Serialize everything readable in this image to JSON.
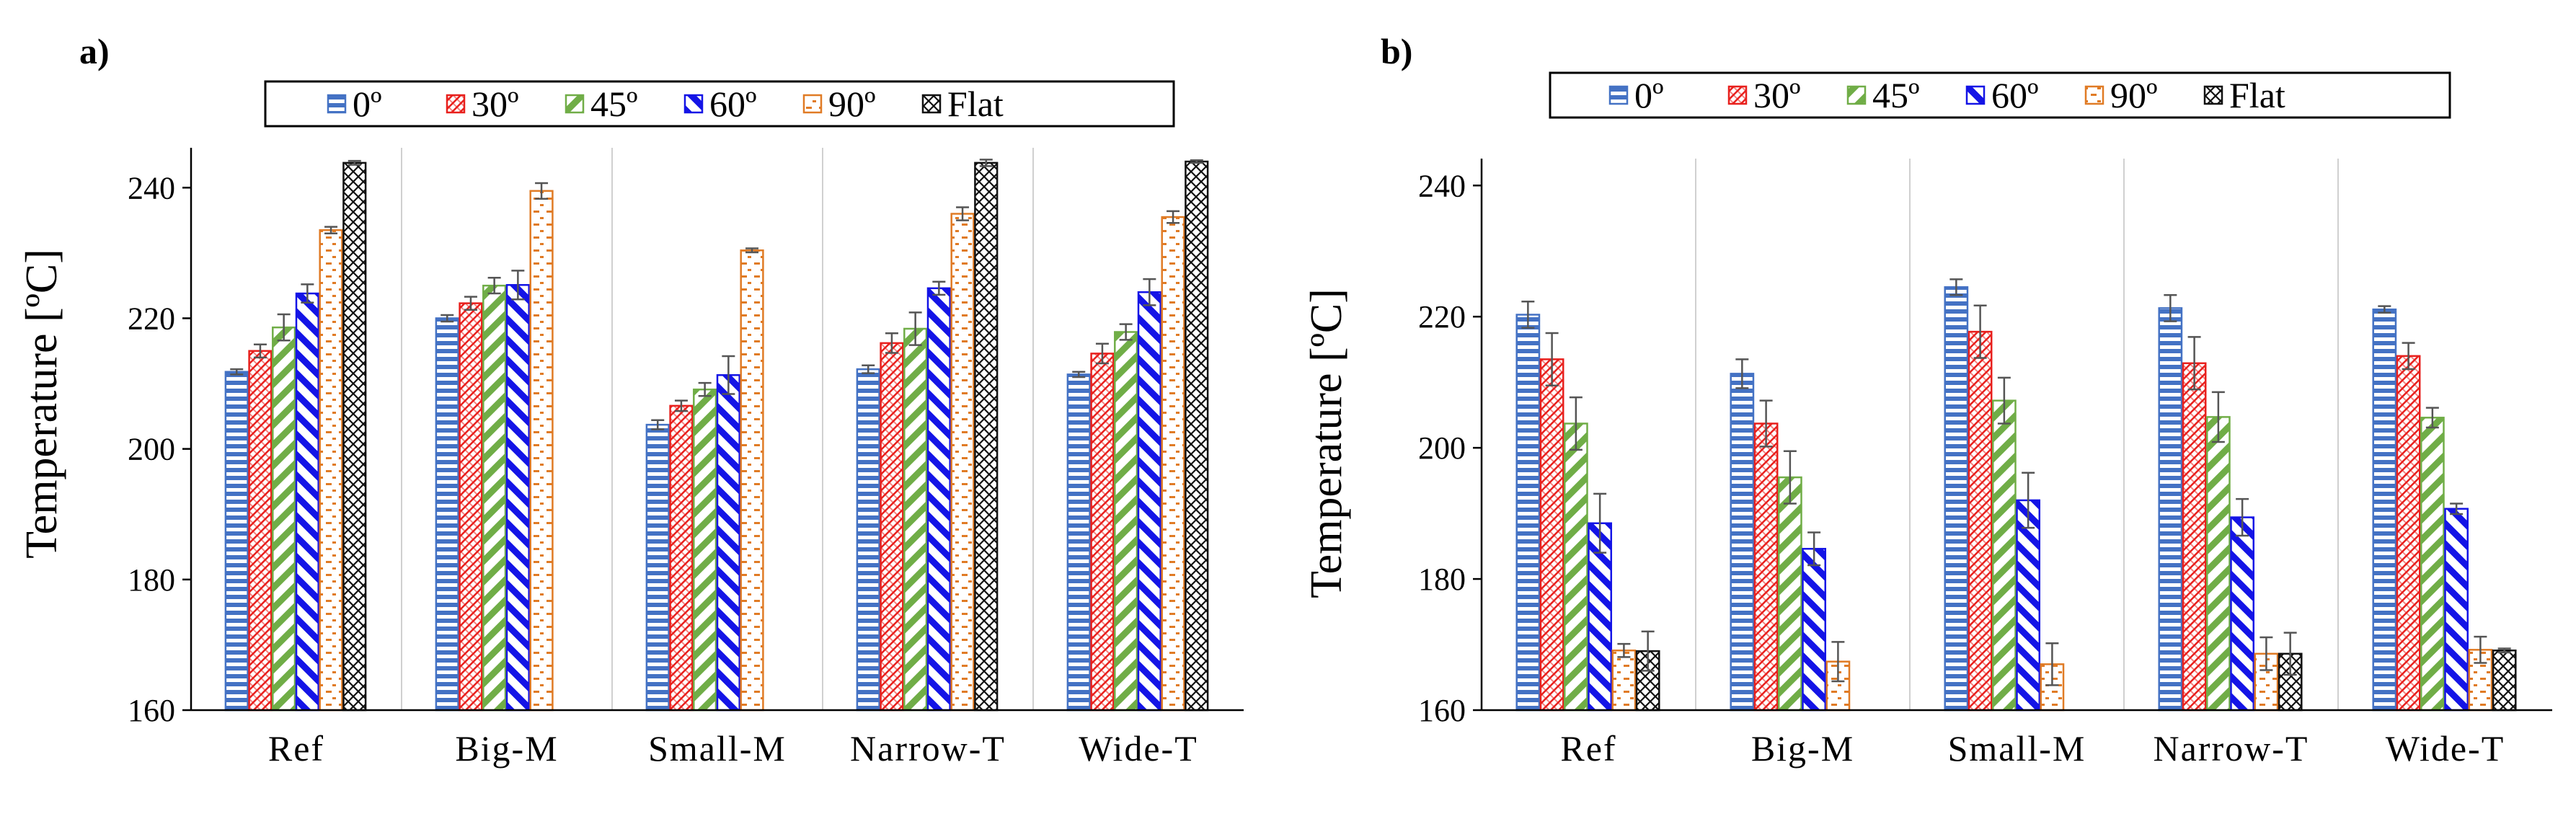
{
  "chart_data": [
    {
      "panel_label": "a)",
      "type": "bar",
      "title": "",
      "xlabel": "",
      "ylabel": "Temperature  [ºC]",
      "ylim": [
        160,
        245
      ],
      "yticks": [
        160,
        180,
        200,
        220,
        240
      ],
      "ytick_labels": [
        "160",
        "180",
        "200",
        "220",
        "240"
      ],
      "categories": [
        "Ref",
        "Big-M",
        "Small-M",
        "Narrow-T",
        "Wide-T"
      ],
      "legend_position": "top",
      "series": [
        {
          "name": "0º",
          "color": "#4472c4",
          "pattern": "horizontal",
          "values": [
            211.8,
            220.0,
            203.7,
            212.2,
            211.4
          ],
          "errors": [
            0.4,
            0.5,
            0.7,
            0.6,
            0.4
          ]
        },
        {
          "name": "30º",
          "color": "#e8201d",
          "pattern": "dots",
          "values": [
            215.0,
            222.3,
            206.6,
            216.2,
            214.6
          ],
          "errors": [
            1.0,
            1.0,
            0.8,
            1.5,
            1.5
          ]
        },
        {
          "name": "45º",
          "color": "#70ad47",
          "pattern": "wide-diagonal",
          "values": [
            218.6,
            225.0,
            209.1,
            218.4,
            217.9
          ],
          "errors": [
            2.0,
            1.2,
            1.0,
            2.5,
            1.2
          ]
        },
        {
          "name": "60º",
          "color": "#1414e6",
          "pattern": "bold-diagonal",
          "values": [
            223.8,
            225.1,
            211.3,
            224.6,
            224.0
          ],
          "errors": [
            1.4,
            2.2,
            2.9,
            1.0,
            2.0
          ]
        },
        {
          "name": "90º",
          "color": "#e07b25",
          "pattern": "dashes",
          "values": [
            233.5,
            239.5,
            230.4,
            236.0,
            235.5
          ],
          "errors": [
            0.5,
            1.2,
            0.3,
            1.0,
            0.9
          ]
        },
        {
          "name": "Flat",
          "color": "#111111",
          "pattern": "checker",
          "values": [
            243.8,
            null,
            null,
            243.8,
            244.0
          ],
          "errors": [
            0.3,
            0,
            0,
            0.5,
            0.2
          ]
        }
      ]
    },
    {
      "panel_label": "b)",
      "type": "bar",
      "title": "",
      "xlabel": "",
      "ylabel": "Temperature  [ºC]",
      "ylim": [
        160,
        243
      ],
      "yticks": [
        160,
        180,
        200,
        220,
        240
      ],
      "ytick_labels": [
        "160",
        "180",
        "200",
        "220",
        "240"
      ],
      "categories": [
        "Ref",
        "Big-M",
        "Small-M",
        "Narrow-T",
        "Wide-T"
      ],
      "legend_position": "top",
      "series": [
        {
          "name": "0º",
          "color": "#4472c4",
          "pattern": "horizontal",
          "values": [
            220.3,
            211.3,
            224.5,
            221.3,
            221.1
          ],
          "errors": [
            2.0,
            2.2,
            1.2,
            2.0,
            0.5
          ]
        },
        {
          "name": "30º",
          "color": "#e8201d",
          "pattern": "dots",
          "values": [
            213.5,
            203.7,
            217.7,
            212.9,
            214.0
          ],
          "errors": [
            4.0,
            3.5,
            4.0,
            4.0,
            2.0
          ]
        },
        {
          "name": "45º",
          "color": "#70ad47",
          "pattern": "wide-diagonal",
          "values": [
            203.7,
            195.5,
            207.2,
            204.7,
            204.6
          ],
          "errors": [
            4.0,
            4.0,
            3.5,
            3.8,
            1.5
          ]
        },
        {
          "name": "60º",
          "color": "#1414e6",
          "pattern": "bold-diagonal",
          "values": [
            188.5,
            184.6,
            192.0,
            189.4,
            190.7
          ],
          "errors": [
            4.5,
            2.5,
            4.2,
            2.8,
            0.8
          ]
        },
        {
          "name": "90º",
          "color": "#e07b25",
          "pattern": "dashes",
          "values": [
            169.1,
            167.4,
            167.0,
            168.6,
            169.2
          ],
          "errors": [
            1.0,
            3.0,
            3.2,
            2.5,
            2.0
          ]
        },
        {
          "name": "Flat",
          "color": "#111111",
          "pattern": "checker",
          "values": [
            169.0,
            null,
            null,
            168.6,
            169.1
          ],
          "errors": [
            3.0,
            0,
            0,
            3.2,
            0.3
          ]
        }
      ]
    }
  ]
}
